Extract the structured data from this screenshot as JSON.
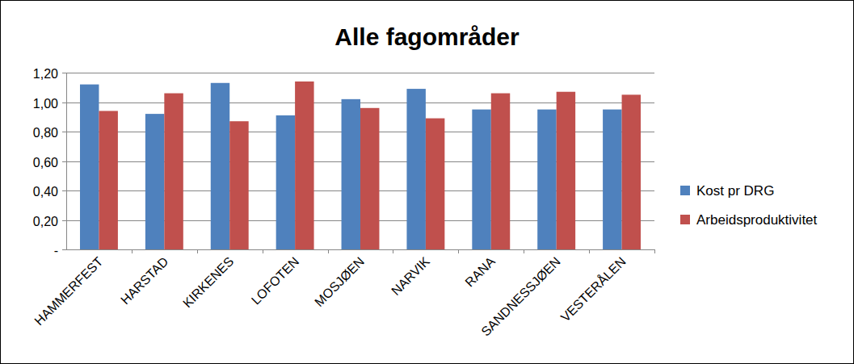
{
  "chart_data": {
    "type": "bar",
    "title": "Alle fagområder",
    "categories": [
      "HAMMERFEST",
      "HARSTAD",
      "KIRKENES",
      "LOFOTEN",
      "MOSJØEN",
      "NARVIK",
      "RANA",
      "SANDNESSJØEN",
      "VESTERÅLEN"
    ],
    "series": [
      {
        "name": "Kost pr DRG",
        "color": "#4f81bd",
        "values": [
          1.12,
          0.92,
          1.13,
          0.91,
          1.02,
          1.09,
          0.95,
          0.95,
          0.95
        ]
      },
      {
        "name": "Arbeidsproduktivitet",
        "color": "#c0504d",
        "values": [
          0.94,
          1.06,
          0.87,
          1.14,
          0.96,
          0.89,
          1.06,
          1.07,
          1.05
        ]
      }
    ],
    "ylim": [
      0,
      1.2
    ],
    "yticks": [
      {
        "value": 0,
        "label": "-"
      },
      {
        "value": 0.2,
        "label": "0,20"
      },
      {
        "value": 0.4,
        "label": "0,40"
      },
      {
        "value": 0.6,
        "label": "0,60"
      },
      {
        "value": 0.8,
        "label": "0,80"
      },
      {
        "value": 1.0,
        "label": "1,00"
      },
      {
        "value": 1.2,
        "label": "1,20"
      }
    ],
    "grid": true,
    "legend": "right"
  }
}
